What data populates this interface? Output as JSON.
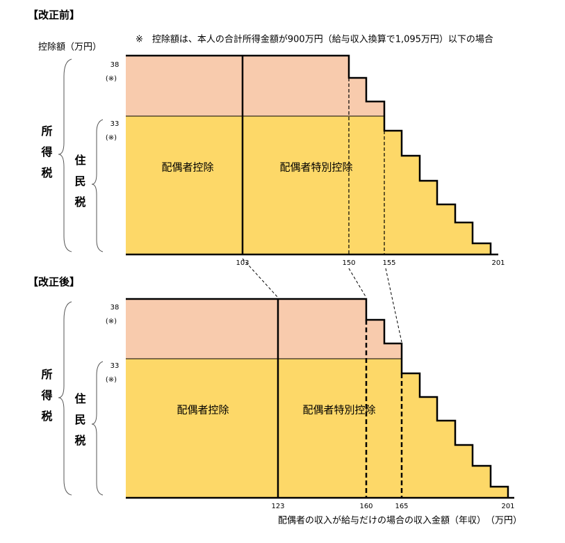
{
  "before": {
    "title": "【改正前】",
    "note": "※　控除額は、本人の合計所得金額が900万円（給与収入換算で1,095万円）以下の場合",
    "y_label": "控除額（万円）",
    "income_tax": "所得税",
    "resident_tax": "住民税",
    "y_labels": [
      "38",
      "(※)",
      "33",
      "(※)"
    ],
    "regions": [
      "配偶者控除",
      "配偶者特別控除"
    ],
    "x_labels": [
      "103",
      "150",
      "155",
      "201"
    ]
  },
  "after": {
    "title": "【改正後】",
    "income_tax": "所得税",
    "resident_tax": "住民税",
    "y_labels": [
      "38",
      "(※)",
      "33",
      "(※)"
    ],
    "regions": [
      "配偶者控除",
      "配偶者特別控除"
    ],
    "x_labels": [
      "123",
      "160",
      "165",
      "201"
    ]
  },
  "x_axis_label": "配偶者の収入が給与だけの場合の収入金額（年収）　（万円）"
}
